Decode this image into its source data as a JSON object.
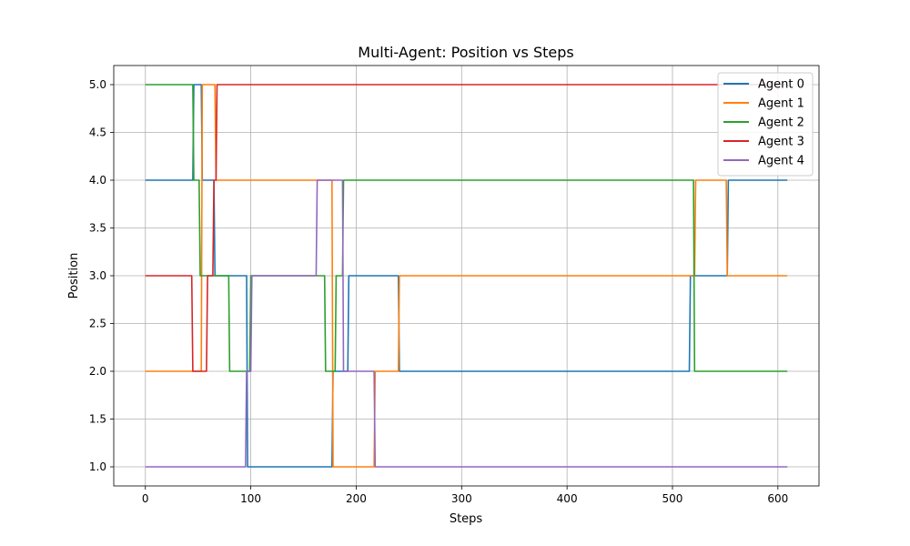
{
  "chart_data": {
    "type": "line",
    "title": "Multi-Agent: Position vs Steps",
    "xlabel": "Steps",
    "ylabel": "Position",
    "xlim": [
      -30,
      639
    ],
    "ylim": [
      0.8,
      5.2
    ],
    "xticks": [
      0,
      100,
      200,
      300,
      400,
      500,
      600
    ],
    "yticks": [
      1.0,
      1.5,
      2.0,
      2.5,
      3.0,
      3.5,
      4.0,
      4.5,
      5.0
    ],
    "grid": true,
    "legend_position": "top-right",
    "series": [
      {
        "name": "Agent 0",
        "color": "#1f77b4",
        "x": [
          0,
          45,
          46,
          53,
          54,
          65,
          66,
          96,
          97,
          177,
          178,
          192,
          193,
          240,
          241,
          516,
          517,
          552,
          553,
          609
        ],
        "y": [
          4,
          4,
          5,
          5,
          4,
          4,
          3,
          3,
          1,
          1,
          2,
          2,
          3,
          3,
          2,
          2,
          3,
          3,
          4,
          4
        ]
      },
      {
        "name": "Agent 1",
        "color": "#ff7f0e",
        "x": [
          0,
          53,
          54,
          66,
          67,
          162,
          163,
          177,
          178,
          217,
          218,
          240,
          241,
          516,
          517,
          521,
          522,
          551,
          552,
          609
        ],
        "y": [
          2,
          2,
          5,
          5,
          4,
          4,
          4,
          4,
          1,
          1,
          2,
          2,
          3,
          3,
          3,
          3,
          4,
          4,
          3,
          3
        ]
      },
      {
        "name": "Agent 2",
        "color": "#2ca02c",
        "x": [
          0,
          45,
          46,
          51,
          52,
          79,
          80,
          99,
          100,
          170,
          171,
          180,
          181,
          187,
          188,
          520,
          521,
          609
        ],
        "y": [
          5,
          5,
          4,
          4,
          3,
          3,
          2,
          2,
          3,
          3,
          2,
          2,
          3,
          3,
          4,
          4,
          2,
          2
        ]
      },
      {
        "name": "Agent 3",
        "color": "#d62728",
        "x": [
          0,
          44,
          45,
          58,
          59,
          64,
          65,
          67,
          68,
          609
        ],
        "y": [
          3,
          3,
          2,
          2,
          3,
          3,
          4,
          4,
          5,
          5
        ]
      },
      {
        "name": "Agent 4",
        "color": "#9467bd",
        "x": [
          0,
          95,
          96,
          100,
          101,
          162,
          163,
          187,
          188,
          217,
          218,
          609
        ],
        "y": [
          1,
          1,
          2,
          2,
          3,
          3,
          4,
          4,
          2,
          2,
          1,
          1
        ]
      }
    ]
  }
}
